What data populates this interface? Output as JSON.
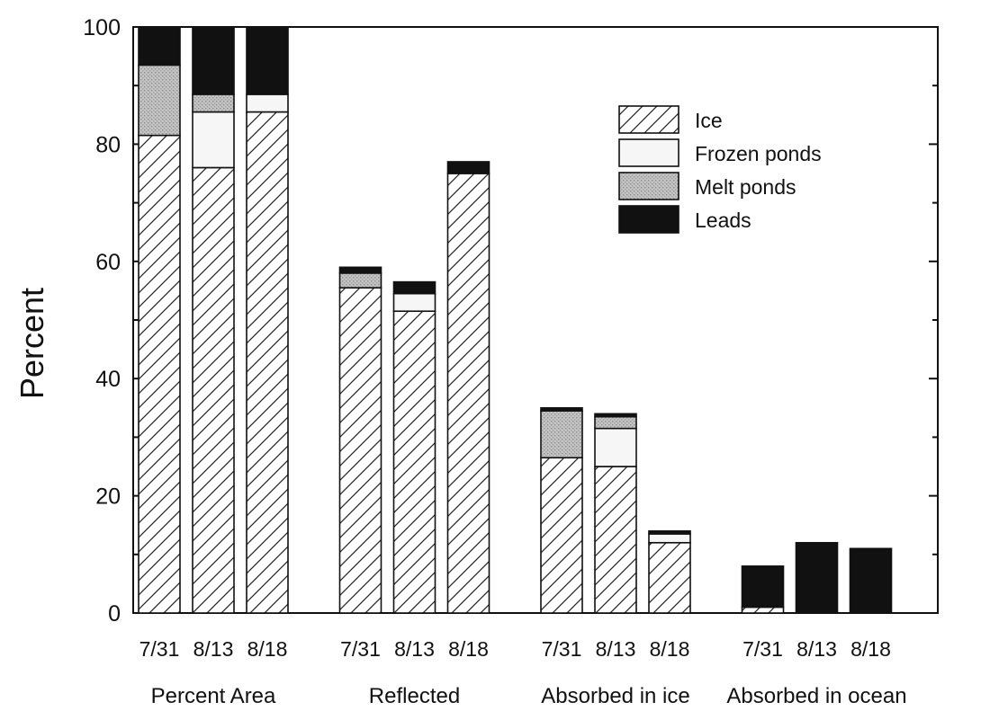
{
  "chart_data": {
    "type": "bar",
    "stacked": true,
    "ylabel": "Percent",
    "xlabel": "",
    "ylim": [
      0,
      100
    ],
    "yticks": [
      0,
      20,
      40,
      60,
      80,
      100
    ],
    "legend_position": "top-right",
    "groups": [
      {
        "name": "Percent Area",
        "dates": [
          "7/31",
          "8/13",
          "8/18"
        ]
      },
      {
        "name": "Reflected",
        "dates": [
          "7/31",
          "8/13",
          "8/18"
        ]
      },
      {
        "name": "Absorbed in ice",
        "dates": [
          "7/31",
          "8/13",
          "8/18"
        ]
      },
      {
        "name": "Absorbed in ocean",
        "dates": [
          "7/31",
          "8/13",
          "8/18"
        ]
      }
    ],
    "series": [
      {
        "name": "Ice",
        "pattern": "hatch",
        "color": "#ffffff",
        "values": [
          [
            81.5,
            76,
            85.5
          ],
          [
            55.5,
            51.5,
            75
          ],
          [
            26.5,
            25,
            12
          ],
          [
            1,
            0,
            0
          ]
        ]
      },
      {
        "name": "Frozen ponds",
        "pattern": "solid",
        "color": "#f6f6f6",
        "values": [
          [
            0,
            9.5,
            3
          ],
          [
            0,
            3,
            0
          ],
          [
            0,
            6.5,
            1.5
          ],
          [
            0,
            0,
            0
          ]
        ]
      },
      {
        "name": "Melt ponds",
        "pattern": "stipple",
        "color": "#b9b9b9",
        "values": [
          [
            12,
            3,
            0
          ],
          [
            2.5,
            0,
            0
          ],
          [
            8,
            2,
            0
          ],
          [
            0,
            0,
            0
          ]
        ]
      },
      {
        "name": "Leads",
        "pattern": "solid",
        "color": "#111111",
        "values": [
          [
            6.5,
            11.5,
            11.5
          ],
          [
            1,
            2,
            2
          ],
          [
            0.5,
            0.5,
            0.5
          ],
          [
            7,
            12,
            11
          ]
        ]
      }
    ]
  }
}
